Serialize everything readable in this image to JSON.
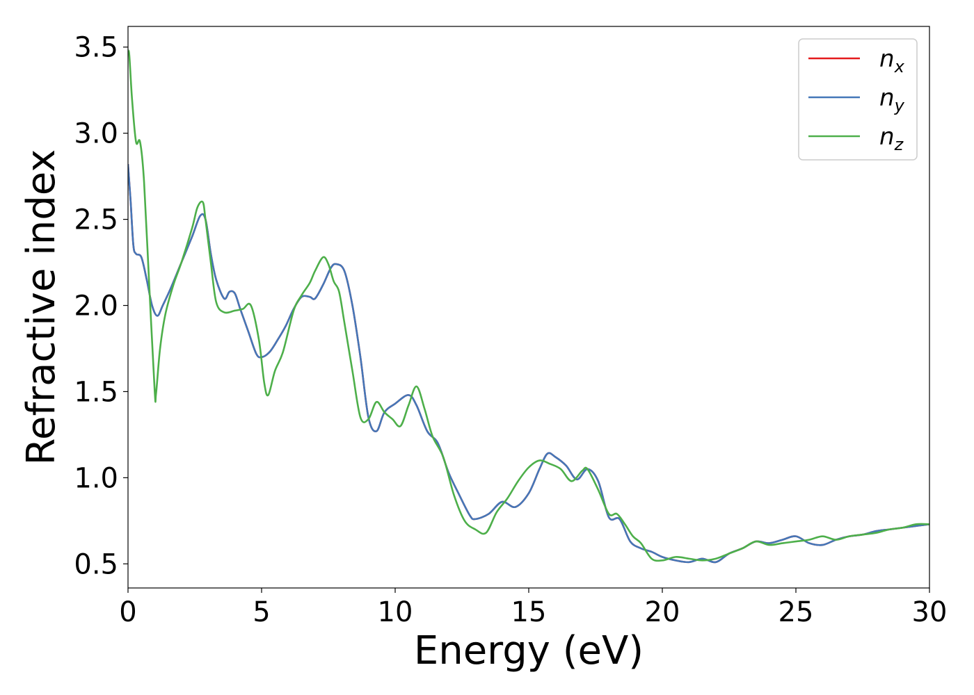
{
  "chart_data": {
    "type": "line",
    "xlabel": "Energy (eV)",
    "ylabel": "Refractive index",
    "xlim": [
      0,
      30
    ],
    "ylim": [
      0.36,
      3.62
    ],
    "xticks": [
      0,
      5,
      10,
      15,
      20,
      25,
      30
    ],
    "yticks": [
      0.5,
      1.0,
      1.5,
      2.0,
      2.5,
      3.0,
      3.5
    ],
    "xtick_labels": [
      "0",
      "5",
      "10",
      "15",
      "20",
      "25",
      "30"
    ],
    "ytick_labels": [
      "0.5",
      "1.0",
      "1.5",
      "2.0",
      "2.5",
      "3.0",
      "3.5"
    ],
    "grid": false,
    "legend": "top-right",
    "series": [
      {
        "name": "n_x",
        "label_main": "n",
        "label_sub": "x",
        "color": "#e41a1c",
        "x": [
          0,
          0.1,
          0.2,
          0.3,
          0.5,
          0.7,
          0.9,
          1.1,
          1.3,
          1.6,
          2.0,
          2.4,
          2.7,
          2.9,
          3.1,
          3.3,
          3.6,
          3.8,
          4.0,
          4.2,
          4.5,
          4.8,
          5.0,
          5.3,
          5.6,
          5.9,
          6.2,
          6.5,
          6.8,
          7.0,
          7.3,
          7.6,
          7.8,
          8.1,
          8.4,
          8.7,
          9.0,
          9.3,
          9.6,
          10.0,
          10.5,
          10.8,
          11.2,
          11.6,
          12.0,
          12.4,
          12.8,
          13.0,
          13.5,
          14.0,
          14.5,
          15.0,
          15.4,
          15.7,
          16.0,
          16.4,
          16.8,
          17.2,
          17.6,
          18.0,
          18.4,
          18.8,
          19.2,
          19.6,
          20.0,
          20.5,
          21.0,
          21.5,
          22.0,
          22.5,
          23.0,
          23.5,
          24.0,
          24.5,
          25.0,
          25.5,
          26.0,
          26.5,
          27.0,
          27.5,
          28.0,
          28.5,
          29.0,
          29.5,
          30.0
        ],
        "y": [
          2.82,
          2.6,
          2.35,
          2.3,
          2.28,
          2.15,
          2.0,
          1.94,
          2.0,
          2.1,
          2.25,
          2.4,
          2.52,
          2.5,
          2.3,
          2.15,
          2.04,
          2.08,
          2.07,
          1.98,
          1.85,
          1.72,
          1.7,
          1.73,
          1.8,
          1.88,
          1.98,
          2.05,
          2.05,
          2.04,
          2.12,
          2.22,
          2.24,
          2.2,
          2.0,
          1.7,
          1.35,
          1.27,
          1.38,
          1.43,
          1.48,
          1.42,
          1.27,
          1.2,
          1.03,
          0.9,
          0.78,
          0.76,
          0.79,
          0.86,
          0.83,
          0.91,
          1.05,
          1.14,
          1.12,
          1.07,
          0.99,
          1.05,
          0.98,
          0.77,
          0.76,
          0.63,
          0.59,
          0.57,
          0.54,
          0.52,
          0.51,
          0.53,
          0.51,
          0.56,
          0.59,
          0.63,
          0.62,
          0.64,
          0.66,
          0.62,
          0.61,
          0.64,
          0.66,
          0.67,
          0.69,
          0.7,
          0.71,
          0.72,
          0.73
        ]
      },
      {
        "name": "n_y",
        "label_main": "n",
        "label_sub": "y",
        "color": "#4477b8",
        "x": [
          0,
          0.1,
          0.2,
          0.3,
          0.5,
          0.7,
          0.9,
          1.1,
          1.3,
          1.6,
          2.0,
          2.4,
          2.7,
          2.9,
          3.1,
          3.3,
          3.6,
          3.8,
          4.0,
          4.2,
          4.5,
          4.8,
          5.0,
          5.3,
          5.6,
          5.9,
          6.2,
          6.5,
          6.8,
          7.0,
          7.3,
          7.6,
          7.8,
          8.1,
          8.4,
          8.7,
          9.0,
          9.3,
          9.6,
          10.0,
          10.5,
          10.8,
          11.2,
          11.6,
          12.0,
          12.4,
          12.8,
          13.0,
          13.5,
          14.0,
          14.5,
          15.0,
          15.4,
          15.7,
          16.0,
          16.4,
          16.8,
          17.2,
          17.6,
          18.0,
          18.4,
          18.8,
          19.2,
          19.6,
          20.0,
          20.5,
          21.0,
          21.5,
          22.0,
          22.5,
          23.0,
          23.5,
          24.0,
          24.5,
          25.0,
          25.5,
          26.0,
          26.5,
          27.0,
          27.5,
          28.0,
          28.5,
          29.0,
          29.5,
          30.0
        ],
        "y": [
          2.82,
          2.6,
          2.35,
          2.3,
          2.28,
          2.15,
          2.0,
          1.94,
          2.0,
          2.1,
          2.25,
          2.4,
          2.52,
          2.5,
          2.3,
          2.15,
          2.04,
          2.08,
          2.07,
          1.98,
          1.85,
          1.72,
          1.7,
          1.73,
          1.8,
          1.88,
          1.98,
          2.05,
          2.05,
          2.04,
          2.12,
          2.22,
          2.24,
          2.2,
          2.0,
          1.7,
          1.35,
          1.27,
          1.38,
          1.43,
          1.48,
          1.42,
          1.27,
          1.2,
          1.03,
          0.9,
          0.78,
          0.76,
          0.79,
          0.86,
          0.83,
          0.91,
          1.05,
          1.14,
          1.12,
          1.07,
          0.99,
          1.05,
          0.98,
          0.77,
          0.76,
          0.63,
          0.59,
          0.57,
          0.54,
          0.52,
          0.51,
          0.53,
          0.51,
          0.56,
          0.59,
          0.63,
          0.62,
          0.64,
          0.66,
          0.62,
          0.61,
          0.64,
          0.66,
          0.67,
          0.69,
          0.7,
          0.71,
          0.72,
          0.73
        ]
      },
      {
        "name": "n_z",
        "label_main": "n",
        "label_sub": "z",
        "color": "#4daf4a",
        "x": [
          0,
          0.05,
          0.15,
          0.3,
          0.45,
          0.6,
          0.8,
          1.0,
          1.05,
          1.2,
          1.4,
          1.7,
          2.0,
          2.4,
          2.6,
          2.8,
          2.9,
          3.1,
          3.3,
          3.6,
          4.0,
          4.3,
          4.6,
          4.9,
          5.1,
          5.25,
          5.5,
          5.8,
          6.2,
          6.5,
          6.8,
          7.0,
          7.3,
          7.5,
          7.7,
          7.9,
          8.1,
          8.4,
          8.7,
          9.0,
          9.3,
          9.6,
          9.9,
          10.2,
          10.5,
          10.8,
          11.1,
          11.4,
          11.8,
          12.2,
          12.6,
          13.0,
          13.4,
          13.8,
          14.2,
          14.6,
          15.0,
          15.4,
          15.8,
          16.2,
          16.6,
          17.0,
          17.2,
          17.6,
          18.0,
          18.3,
          18.6,
          18.9,
          19.2,
          19.6,
          20.0,
          20.5,
          21.0,
          21.5,
          22.0,
          22.5,
          23.0,
          23.5,
          24.0,
          24.5,
          25.0,
          25.5,
          26.0,
          26.5,
          27.0,
          27.5,
          28.0,
          28.5,
          29.0,
          29.5,
          30.0
        ],
        "y": [
          3.48,
          3.45,
          3.2,
          2.95,
          2.95,
          2.72,
          2.1,
          1.5,
          1.49,
          1.75,
          1.95,
          2.12,
          2.25,
          2.45,
          2.57,
          2.6,
          2.5,
          2.25,
          2.02,
          1.96,
          1.97,
          1.98,
          2.0,
          1.8,
          1.55,
          1.48,
          1.62,
          1.73,
          1.97,
          2.06,
          2.13,
          2.2,
          2.28,
          2.24,
          2.14,
          2.08,
          1.9,
          1.62,
          1.35,
          1.34,
          1.44,
          1.38,
          1.34,
          1.3,
          1.42,
          1.53,
          1.4,
          1.24,
          1.12,
          0.9,
          0.75,
          0.7,
          0.68,
          0.8,
          0.88,
          0.98,
          1.06,
          1.1,
          1.08,
          1.05,
          0.98,
          1.04,
          1.05,
          0.93,
          0.79,
          0.79,
          0.73,
          0.66,
          0.62,
          0.53,
          0.52,
          0.54,
          0.53,
          0.52,
          0.53,
          0.56,
          0.59,
          0.63,
          0.61,
          0.62,
          0.63,
          0.64,
          0.66,
          0.64,
          0.66,
          0.67,
          0.68,
          0.7,
          0.71,
          0.73,
          0.73
        ]
      }
    ]
  }
}
